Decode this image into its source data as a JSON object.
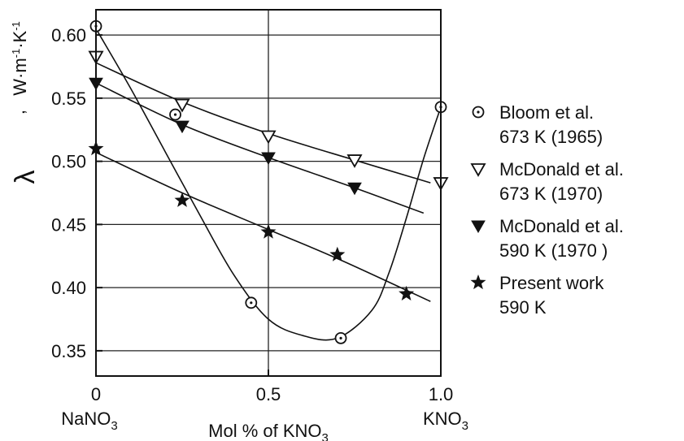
{
  "chart_data": {
    "type": "scatter",
    "xlabel": {
      "main": "Mol % of KNO",
      "sub": "3"
    },
    "ylabel": {
      "symbol": "λ",
      "sep": ",",
      "unit_parts": [
        "W·m",
        "-1",
        "·K",
        "-1"
      ]
    },
    "x_end_labels": {
      "left": {
        "main": "NaNO",
        "sub": "3"
      },
      "right": {
        "main": "KNO",
        "sub": "3"
      }
    },
    "xlim": [
      0,
      1.0
    ],
    "ylim": [
      0.33,
      0.62
    ],
    "x_ticks": [
      0,
      0.5,
      1.0
    ],
    "x_tick_labels": [
      "0",
      "0.5",
      "1.0"
    ],
    "y_ticks": [
      0.35,
      0.4,
      0.45,
      0.5,
      0.55,
      0.6
    ],
    "y_tick_labels": [
      "0.35",
      "0.40",
      "0.45",
      "0.50",
      "0.55",
      "0.60"
    ],
    "grid": true,
    "legend_position": "right",
    "series": [
      {
        "name_lines": [
          "Bloom et al.",
          "673 K (1965)"
        ],
        "marker": "circle-dot",
        "x": [
          0,
          0.23,
          0.45,
          0.71,
          1.0
        ],
        "y": [
          0.607,
          0.537,
          0.388,
          0.36,
          0.543
        ],
        "curve_x": [
          0,
          0.1,
          0.2,
          0.3,
          0.4,
          0.5,
          0.6,
          0.7,
          0.8,
          0.85,
          0.9,
          0.95,
          1.0
        ],
        "curve_y": [
          0.605,
          0.558,
          0.508,
          0.458,
          0.41,
          0.375,
          0.362,
          0.36,
          0.382,
          0.412,
          0.455,
          0.502,
          0.543
        ]
      },
      {
        "name_lines": [
          "McDonald et al.",
          "673 K (1970)"
        ],
        "marker": "triangle-down-open",
        "x": [
          0,
          0.25,
          0.5,
          0.75,
          1.0
        ],
        "y": [
          0.583,
          0.545,
          0.52,
          0.501,
          0.483
        ],
        "curve_x": [
          0,
          0.25,
          0.5,
          0.75,
          0.97
        ],
        "curve_y": [
          0.578,
          0.547,
          0.522,
          0.501,
          0.483
        ]
      },
      {
        "name_lines": [
          "McDonald et al.",
          "590 K (1970 )"
        ],
        "marker": "triangle-down-filled",
        "x": [
          0,
          0.25,
          0.5,
          0.75
        ],
        "y": [
          0.562,
          0.528,
          0.503,
          0.479
        ],
        "curve_x": [
          0,
          0.25,
          0.5,
          0.75,
          0.95
        ],
        "curve_y": [
          0.562,
          0.529,
          0.503,
          0.479,
          0.459
        ]
      },
      {
        "name_lines": [
          "Present work",
          "590 K"
        ],
        "marker": "star-filled",
        "x": [
          0,
          0.25,
          0.5,
          0.7,
          0.9
        ],
        "y": [
          0.51,
          0.469,
          0.444,
          0.426,
          0.395
        ],
        "curve_x": [
          0,
          0.25,
          0.5,
          0.7,
          0.97
        ],
        "curve_y": [
          0.507,
          0.475,
          0.446,
          0.423,
          0.389
        ]
      }
    ]
  }
}
